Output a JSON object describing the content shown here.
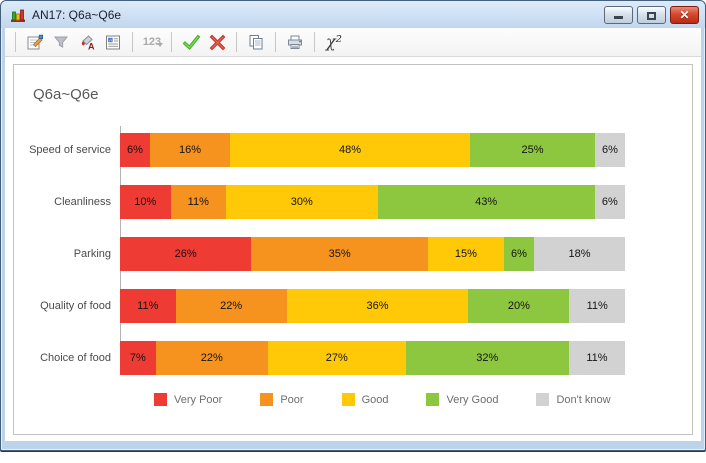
{
  "window": {
    "title": "AN17: Q6a~Q6e",
    "controls": {
      "minimize": "minimize",
      "restore": "restore",
      "close": "close"
    }
  },
  "toolbar": {
    "icons": [
      "properties",
      "filter",
      "format-fill",
      "report",
      "numbers",
      "accept",
      "cancel",
      "copy",
      "print",
      "chi-squared"
    ],
    "numbers_label": "123",
    "chi_label": "χ²"
  },
  "chart_data": {
    "type": "bar",
    "stacked": true,
    "orientation": "horizontal",
    "title": "Q6a~Q6e",
    "categories": [
      "Speed of service",
      "Cleanliness",
      "Parking",
      "Quality of food",
      "Choice of food"
    ],
    "series": [
      {
        "name": "Very Poor",
        "color": "#ee3b33",
        "values": [
          6,
          10,
          26,
          11,
          7
        ]
      },
      {
        "name": "Poor",
        "color": "#f6921e",
        "values": [
          16,
          11,
          35,
          22,
          22
        ]
      },
      {
        "name": "Good",
        "color": "#ffc907",
        "values": [
          48,
          30,
          15,
          36,
          27
        ]
      },
      {
        "name": "Very Good",
        "color": "#8dc63f",
        "values": [
          25,
          43,
          6,
          20,
          32
        ]
      },
      {
        "name": "Don't know",
        "color": "#d2d2d2",
        "values": [
          6,
          6,
          18,
          11,
          11
        ]
      }
    ],
    "value_suffix": "%",
    "legend_position": "bottom",
    "grid": false
  }
}
